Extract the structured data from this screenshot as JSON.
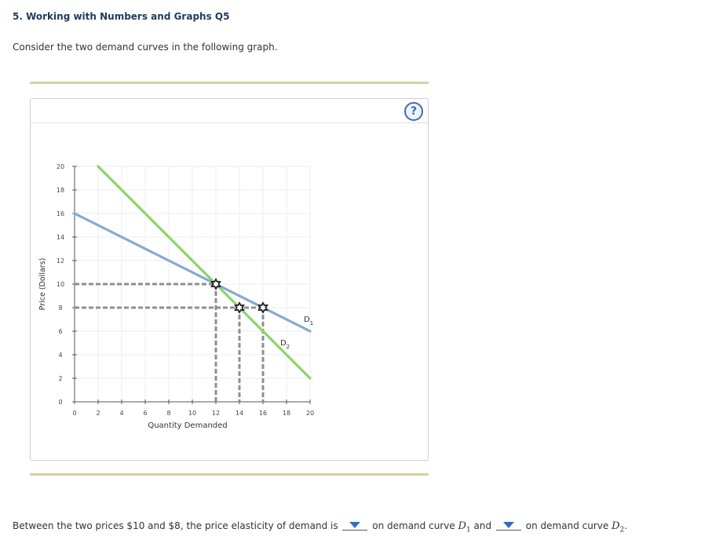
{
  "question": {
    "title": "5. Working with Numbers and Graphs Q5",
    "intro": "Consider the two demand curves in the following graph."
  },
  "help_label": "?",
  "colors": {
    "d1": "#84aad0",
    "d2": "#8cd36a",
    "guide": "#8f8f8f",
    "grid": "#ececec",
    "axis": "#555555"
  },
  "chart_data": {
    "type": "line",
    "xlabel": "Quantity Demanded",
    "ylabel": "Price (Dollars)",
    "xlim": [
      0,
      20
    ],
    "ylim": [
      0,
      20
    ],
    "xticks": [
      0,
      2,
      4,
      6,
      8,
      10,
      12,
      14,
      16,
      18,
      20
    ],
    "yticks": [
      0,
      2,
      4,
      6,
      8,
      10,
      12,
      14,
      16,
      18,
      20
    ],
    "grid": true,
    "series": [
      {
        "name": "D",
        "sub": "1",
        "points": [
          [
            0,
            16
          ],
          [
            20,
            6
          ]
        ],
        "color": "#84aad0"
      },
      {
        "name": "D",
        "sub": "2",
        "points": [
          [
            2,
            20
          ],
          [
            20,
            2
          ]
        ],
        "color": "#8cd36a"
      }
    ],
    "markers": [
      [
        12,
        10
      ],
      [
        14,
        8
      ],
      [
        16,
        8
      ]
    ],
    "guides": [
      {
        "from": [
          0,
          10
        ],
        "to": [
          12,
          10
        ]
      },
      {
        "from": [
          0,
          8
        ],
        "to": [
          16,
          8
        ]
      },
      {
        "from": [
          12,
          10
        ],
        "to": [
          12,
          0
        ]
      },
      {
        "from": [
          14,
          8
        ],
        "to": [
          14,
          0
        ]
      },
      {
        "from": [
          16,
          8
        ],
        "to": [
          16,
          0
        ]
      }
    ]
  },
  "sentence": {
    "part1": "Between the two prices $10 and $8, the price elasticity of demand is",
    "part2": "on demand curve",
    "curve1": "D",
    "curve1_sub": "1",
    "part3": "and",
    "curve2": "D",
    "curve2_sub": "2",
    "end": "."
  }
}
